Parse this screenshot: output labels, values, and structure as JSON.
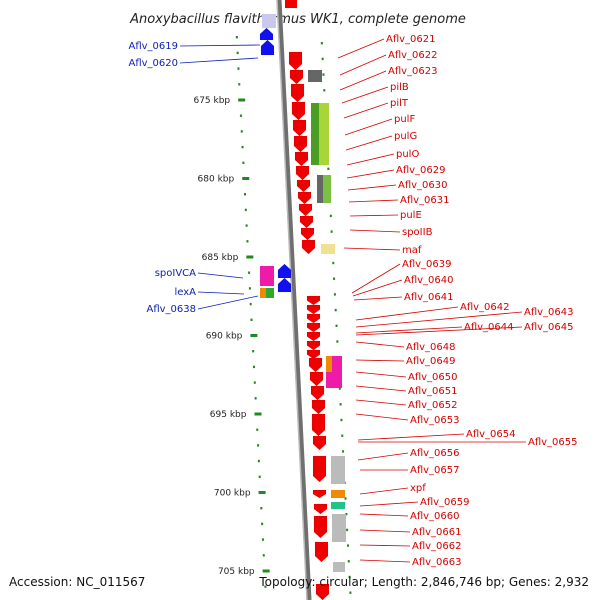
{
  "title": "Anoxybacillus flavithermus WK1, complete genome",
  "footer": {
    "accession": "Accession: NC_011567",
    "topology": "Topology: circular; Length: 2,846,746 bp; Genes: 2,932"
  },
  "scale_ticks": [
    {
      "kb": 675,
      "label": "675 kbp"
    },
    {
      "kb": 680,
      "label": "680 kbp"
    },
    {
      "kb": 685,
      "label": "685 kbp"
    },
    {
      "kb": 690,
      "label": "690 kbp"
    },
    {
      "kb": 695,
      "label": "695 kbp"
    },
    {
      "kb": 700,
      "label": "700 kbp"
    },
    {
      "kb": 705,
      "label": "705 kbp"
    }
  ],
  "colors": {
    "forward_gene": "#ee0000",
    "reverse_gene": "#1111ee",
    "label_blue": "#0a1fb5",
    "label_red": "#d40000",
    "tick_green": "#228822",
    "backbone": "#888888"
  },
  "left_labels": [
    "Aflv_0619",
    "Aflv_0620",
    "spoIVCA",
    "lexA",
    "Aflv_0638"
  ],
  "right_labels": [
    "Aflv_0621",
    "Aflv_0622",
    "Aflv_0623",
    "pilB",
    "pilT",
    "pulF",
    "pulG",
    "pulO",
    "Aflv_0629",
    "Aflv_0630",
    "Aflv_0631",
    "pulE",
    "spoIIB",
    "maf",
    "Aflv_0639",
    "Aflv_0640",
    "Aflv_0641",
    "Aflv_0642",
    "Aflv_0643",
    "Aflv_0644",
    "Aflv_0645",
    "Aflv_0648",
    "Aflv_0649",
    "Aflv_0650",
    "Aflv_0651",
    "Aflv_0652",
    "Aflv_0653",
    "Aflv_0654",
    "Aflv_0655",
    "Aflv_0656",
    "Aflv_0657",
    "xpf",
    "Aflv_0659",
    "Aflv_0660",
    "Aflv_0661",
    "Aflv_0662",
    "Aflv_0663"
  ]
}
